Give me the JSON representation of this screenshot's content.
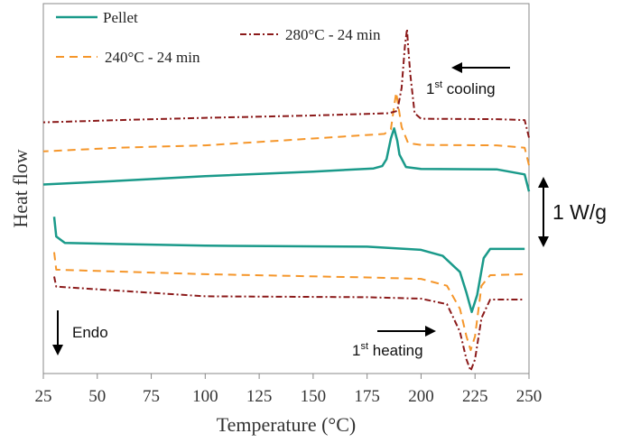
{
  "chart_data": {
    "type": "line",
    "title": "",
    "xlabel": "Temperature (°C)",
    "ylabel": "Heat flow",
    "xlim": [
      25,
      250
    ],
    "xticks": [
      "25",
      "50",
      "75",
      "100",
      "125",
      "150",
      "175",
      "200",
      "225",
      "250"
    ],
    "grid": false,
    "legend_position": "top",
    "series": [
      {
        "name": "Pellet",
        "color": "#1a9a8a",
        "style": "solid",
        "cooling": [
          [
            250,
            0.35
          ],
          [
            248,
            0.72
          ],
          [
            235,
            0.83
          ],
          [
            200,
            0.84
          ],
          [
            193,
            0.88
          ],
          [
            190,
            1.15
          ],
          [
            189,
            1.45
          ],
          [
            187.5,
            1.72
          ],
          [
            186,
            1.5
          ],
          [
            184,
            1.05
          ],
          [
            182,
            0.9
          ],
          [
            178,
            0.85
          ],
          [
            150,
            0.78
          ],
          [
            100,
            0.68
          ],
          [
            60,
            0.58
          ],
          [
            25,
            0.5
          ]
        ],
        "heating": [
          [
            30,
            -0.2
          ],
          [
            31,
            -0.63
          ],
          [
            35,
            -0.77
          ],
          [
            100,
            -0.83
          ],
          [
            175,
            -0.85
          ],
          [
            200,
            -0.92
          ],
          [
            210,
            -1.05
          ],
          [
            218,
            -1.4
          ],
          [
            221,
            -1.85
          ],
          [
            223.5,
            -2.27
          ],
          [
            226,
            -1.9
          ],
          [
            229,
            -1.1
          ],
          [
            232,
            -0.9
          ],
          [
            248,
            -0.9
          ]
        ]
      },
      {
        "name": "240°C - 24 min",
        "color": "#f5962a",
        "style": "dashed",
        "cooling": [
          [
            250,
            0.92
          ],
          [
            248,
            1.3
          ],
          [
            235,
            1.35
          ],
          [
            200,
            1.36
          ],
          [
            194,
            1.4
          ],
          [
            191,
            1.75
          ],
          [
            189.5,
            2.2
          ],
          [
            188.5,
            2.5
          ],
          [
            187.5,
            2.2
          ],
          [
            186,
            1.7
          ],
          [
            183,
            1.6
          ],
          [
            150,
            1.5
          ],
          [
            100,
            1.35
          ],
          [
            60,
            1.3
          ],
          [
            25,
            1.22
          ]
        ],
        "heating": [
          [
            30,
            -0.97
          ],
          [
            31,
            -1.35
          ],
          [
            100,
            -1.45
          ],
          [
            175,
            -1.52
          ],
          [
            200,
            -1.55
          ],
          [
            212,
            -1.7
          ],
          [
            218,
            -2.2
          ],
          [
            221,
            -2.8
          ],
          [
            223,
            -3.1
          ],
          [
            225,
            -2.8
          ],
          [
            228,
            -1.7
          ],
          [
            232,
            -1.47
          ],
          [
            248,
            -1.45
          ]
        ]
      },
      {
        "name": "280°C - 24 min",
        "color": "#8b1a1a",
        "style": "dashdot",
        "cooling": [
          [
            250,
            1.52
          ],
          [
            248,
            1.9
          ],
          [
            235,
            1.92
          ],
          [
            200,
            1.93
          ],
          [
            197,
            2.05
          ],
          [
            195,
            2.9
          ],
          [
            194,
            3.5
          ],
          [
            193.5,
            3.88
          ],
          [
            192.5,
            3.5
          ],
          [
            191,
            2.6
          ],
          [
            189,
            2.1
          ],
          [
            185,
            2.05
          ],
          [
            150,
            2.0
          ],
          [
            100,
            1.95
          ],
          [
            60,
            1.9
          ],
          [
            25,
            1.85
          ]
        ],
        "heating": [
          [
            30,
            -1.5
          ],
          [
            31,
            -1.72
          ],
          [
            100,
            -1.93
          ],
          [
            175,
            -1.95
          ],
          [
            200,
            -1.98
          ],
          [
            212,
            -2.1
          ],
          [
            218,
            -2.7
          ],
          [
            221,
            -3.3
          ],
          [
            223,
            -3.55
          ],
          [
            225,
            -3.3
          ],
          [
            228,
            -2.4
          ],
          [
            232,
            -2.0
          ],
          [
            248,
            -2.0
          ]
        ]
      }
    ],
    "annotations": {
      "cooling_label": "1st cooling",
      "heating_label": "1st heating",
      "endo_label": "Endo",
      "scale_label": "1 W/g"
    }
  }
}
